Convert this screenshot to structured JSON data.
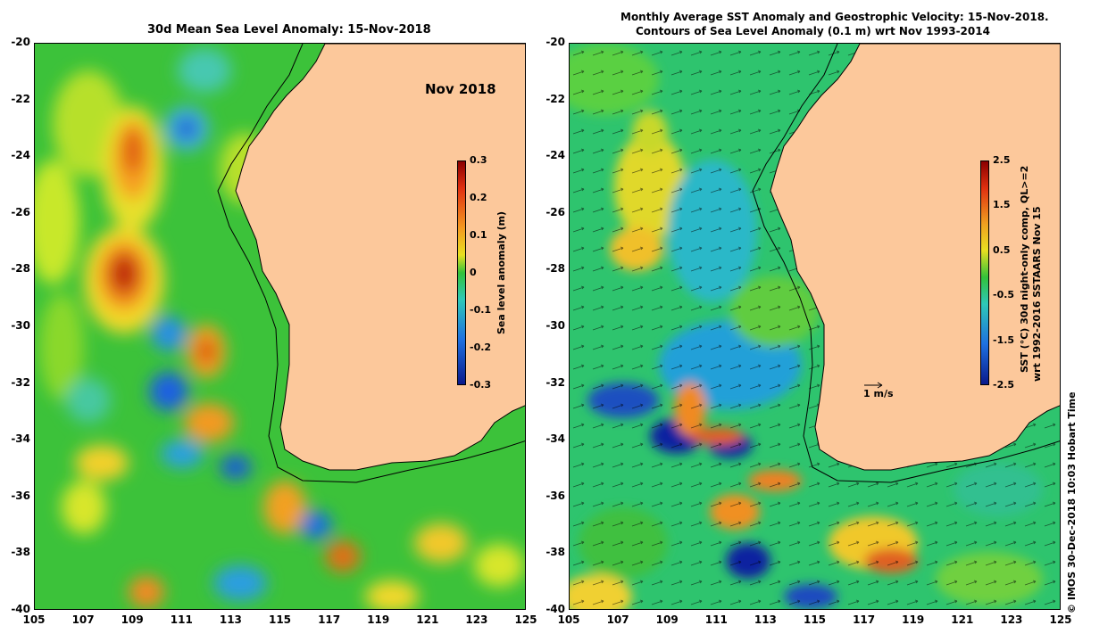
{
  "left_panel": {
    "title": "30d Mean Sea Level Anomaly: 15-Nov-2018",
    "date_label": "Nov 2018",
    "colorbar": {
      "label": "Sea level anomaly (m)",
      "ticks": [
        "0.3",
        "0.2",
        "0.1",
        "0",
        "-0.1",
        "-0.2",
        "-0.3"
      ],
      "range": [
        -0.3,
        0.3
      ]
    }
  },
  "right_panel": {
    "title_line1": "Monthly Average SST Anomaly  and Geostrophic Velocity: 15-Nov-2018.",
    "title_line2": "Contours of Sea Level Anomaly (0.1 m) wrt Nov 1993-2014",
    "scale_arrow_label": "1 m/s",
    "colorbar": {
      "label_line1": "SST (°C) 30d night-only comp, QL>=2",
      "label_line2": "wrt 1992-2016 SSTAARS Nov 15",
      "ticks": [
        "2.5",
        "1.5",
        "0.5",
        "-0.5",
        "-1.5",
        "-2.5"
      ],
      "range": [
        -2.5,
        2.5
      ]
    }
  },
  "axes": {
    "y_ticks": [
      "-20",
      "-22",
      "-24",
      "-26",
      "-28",
      "-30",
      "-32",
      "-34",
      "-36",
      "-38",
      "-40"
    ],
    "x_ticks": [
      "105",
      "107",
      "109",
      "111",
      "113",
      "115",
      "117",
      "119",
      "121",
      "123",
      "125"
    ],
    "lon_range": [
      105,
      125
    ],
    "lat_range": [
      -40,
      -20
    ]
  },
  "credit": "© IMOS 30-Dec-2018 10:03 Hobart Time",
  "colors": {
    "land": "#fcc89b",
    "ocean_base": "#2fc23a",
    "ocean_base_right": "#29c56a"
  }
}
